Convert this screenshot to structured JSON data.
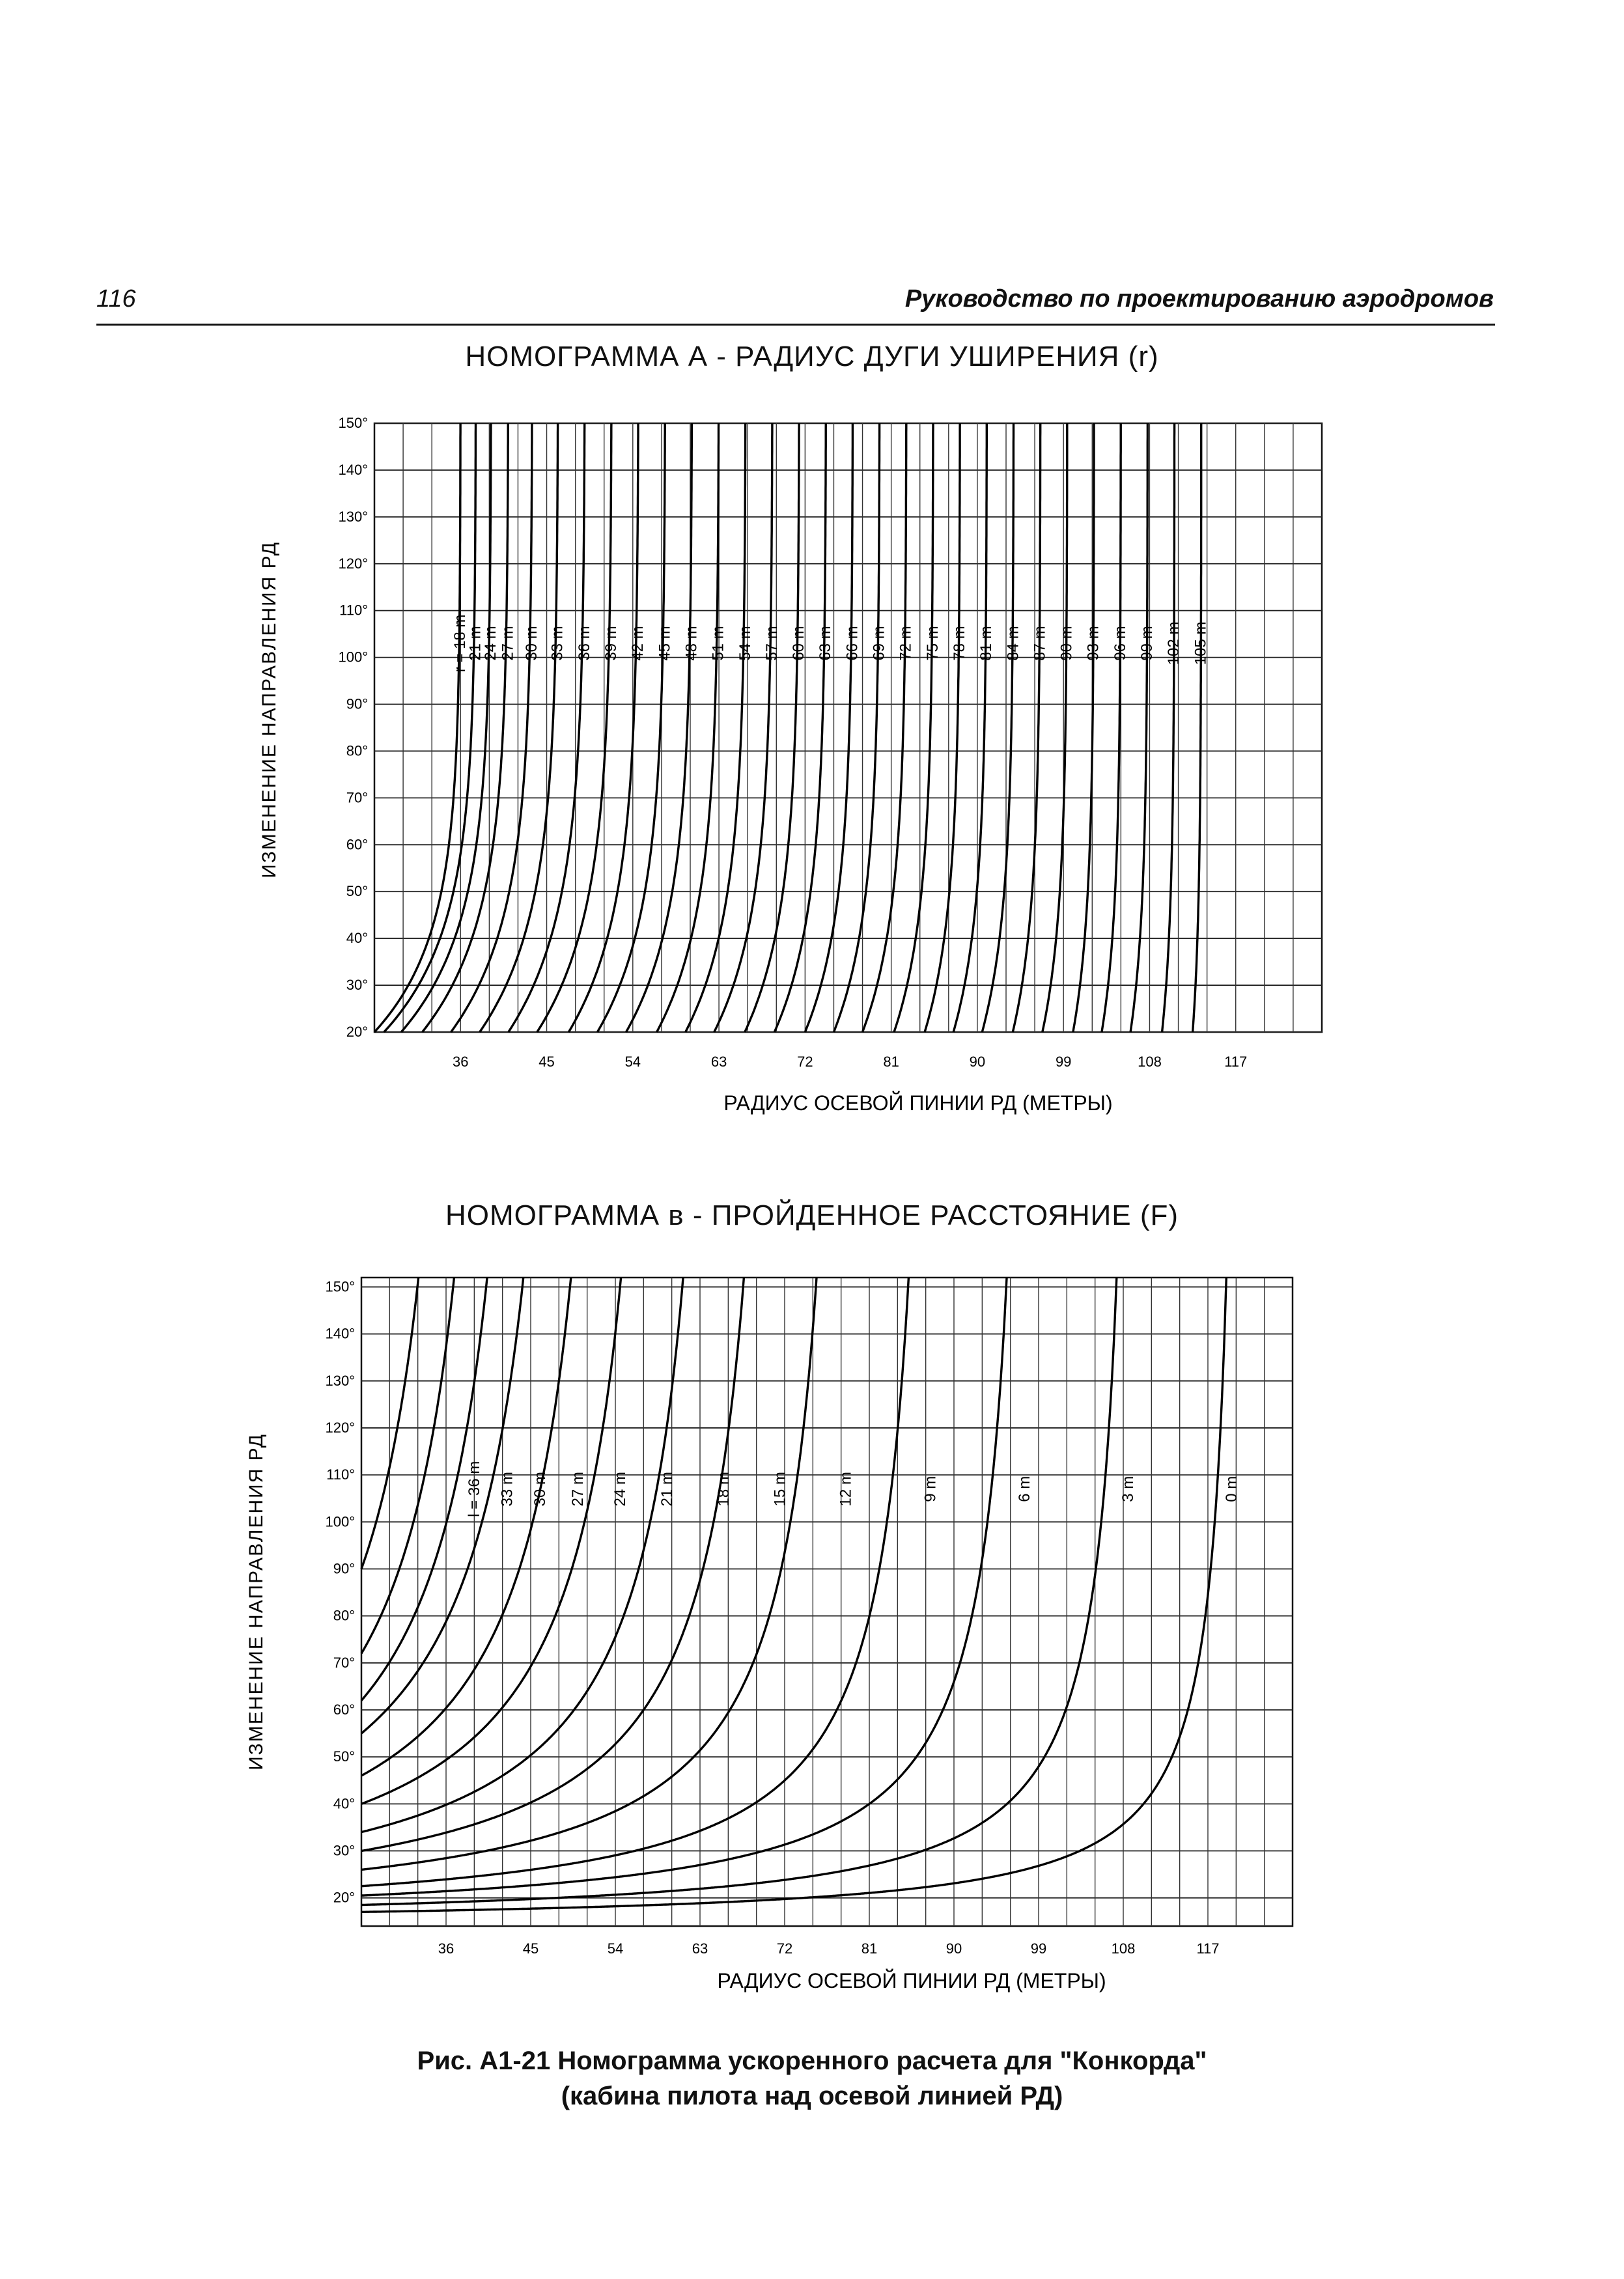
{
  "header": {
    "page_number": "116",
    "running_title": "Руководство по проектированию аэродромов"
  },
  "charts": [
    {
      "title": "НОМОГРАММА А - РАДИУС ДУГИ УШИРЕНИЯ (r)",
      "ylabel": "ИЗМЕНЕНИЕ НАПРАВЛЕНИЯ РД",
      "xlabel": "РАДИУС ОСЕВОЙ ПИНИИ РД (МЕТРЫ)",
      "yticks": [
        "20°",
        "30°",
        "40°",
        "50°",
        "60°",
        "70°",
        "80°",
        "90°",
        "100°",
        "110°",
        "120°",
        "130°",
        "140°",
        "150°"
      ],
      "xticks": [
        "36",
        "45",
        "54",
        "63",
        "72",
        "81",
        "90",
        "99",
        "108",
        "117"
      ]
    },
    {
      "title": "НОМОГРАММА в - ПРОЙДЕННОЕ РАССТОЯНИЕ (F)",
      "ylabel": "ИЗМЕНЕНИЕ НАПРАВЛЕНИЯ РД",
      "xlabel": "РАДИУС ОСЕВОЙ ПИНИИ РД (МЕТРЫ)",
      "yticks": [
        "20°",
        "30°",
        "40°",
        "50°",
        "60°",
        "70°",
        "80°",
        "90°",
        "100°",
        "110°",
        "120°",
        "130°",
        "140°",
        "150°"
      ],
      "xticks": [
        "36",
        "45",
        "54",
        "63",
        "72",
        "81",
        "90",
        "99",
        "108",
        "117"
      ]
    }
  ],
  "caption": {
    "line1": "Рис. A1-21  Номограмма ускоренного расчета для \"Конкорда\"",
    "line2": "(кабина пилота над осевой линией РД)"
  },
  "chart_data": [
    {
      "type": "line",
      "title": "НОМОГРАММА А - РАДИУС ДУГИ УШИРЕНИЯ (r)",
      "xlabel": "РАДИУС ОСЕВОЙ ПИНИИ РД (МЕТРЫ)",
      "ylabel": "ИЗМЕНЕНИЕ НАПРАВЛЕНИЯ РД",
      "xlim": [
        27,
        126
      ],
      "ylim": [
        20,
        150
      ],
      "x_tick_values": [
        36,
        45,
        54,
        63,
        72,
        81,
        90,
        99,
        108,
        117
      ],
      "y_tick_values": [
        20,
        30,
        40,
        50,
        60,
        70,
        80,
        90,
        100,
        110,
        120,
        130,
        140,
        150
      ],
      "grid": true,
      "series_note_values": "each curve: x_at_20deg (bottom), x_asymptote (top), curvature k",
      "series": [
        {
          "name": "r = 18 m",
          "x_at_20deg": 27.0,
          "x_asymptote": 36.0,
          "k": 0.05
        },
        {
          "name": "21 m",
          "x_at_20deg": 28.0,
          "x_asymptote": 37.6,
          "k": 0.047
        },
        {
          "name": "24 m",
          "x_at_20deg": 29.8,
          "x_asymptote": 39.2,
          "k": 0.045
        },
        {
          "name": "27 m",
          "x_at_20deg": 32.0,
          "x_asymptote": 41.0,
          "k": 0.043
        },
        {
          "name": "30 m",
          "x_at_20deg": 35.0,
          "x_asymptote": 43.5,
          "k": 0.042
        },
        {
          "name": "33 m",
          "x_at_20deg": 38.0,
          "x_asymptote": 46.2,
          "k": 0.041
        },
        {
          "name": "36 m",
          "x_at_20deg": 41.0,
          "x_asymptote": 49.0,
          "k": 0.04
        },
        {
          "name": "39 m",
          "x_at_20deg": 44.0,
          "x_asymptote": 51.8,
          "k": 0.04
        },
        {
          "name": "42 m",
          "x_at_20deg": 47.3,
          "x_asymptote": 54.6,
          "k": 0.04
        },
        {
          "name": "45 m",
          "x_at_20deg": 50.3,
          "x_asymptote": 57.4,
          "k": 0.04
        },
        {
          "name": "48 m",
          "x_at_20deg": 53.3,
          "x_asymptote": 60.2,
          "k": 0.04
        },
        {
          "name": "51 m",
          "x_at_20deg": 56.5,
          "x_asymptote": 63.0,
          "k": 0.04
        },
        {
          "name": "54 m",
          "x_at_20deg": 59.5,
          "x_asymptote": 65.8,
          "k": 0.04
        },
        {
          "name": "57 m",
          "x_at_20deg": 62.5,
          "x_asymptote": 68.6,
          "k": 0.04
        },
        {
          "name": "60 m",
          "x_at_20deg": 65.7,
          "x_asymptote": 71.4,
          "k": 0.04
        },
        {
          "name": "63 m",
          "x_at_20deg": 68.8,
          "x_asymptote": 74.2,
          "k": 0.04
        },
        {
          "name": "66 m",
          "x_at_20deg": 72.0,
          "x_asymptote": 77.0,
          "k": 0.04
        },
        {
          "name": "69 m",
          "x_at_20deg": 75.0,
          "x_asymptote": 79.8,
          "k": 0.04
        },
        {
          "name": "72 m",
          "x_at_20deg": 78.0,
          "x_asymptote": 82.6,
          "k": 0.04
        },
        {
          "name": "75 m",
          "x_at_20deg": 81.3,
          "x_asymptote": 85.4,
          "k": 0.04
        },
        {
          "name": "78 m",
          "x_at_20deg": 84.5,
          "x_asymptote": 88.2,
          "k": 0.04
        },
        {
          "name": "81 m",
          "x_at_20deg": 87.5,
          "x_asymptote": 91.0,
          "k": 0.04
        },
        {
          "name": "84 m",
          "x_at_20deg": 90.5,
          "x_asymptote": 93.8,
          "k": 0.04
        },
        {
          "name": "87 m",
          "x_at_20deg": 93.7,
          "x_asymptote": 96.6,
          "k": 0.04
        },
        {
          "name": "90 m",
          "x_at_20deg": 96.8,
          "x_asymptote": 99.4,
          "k": 0.04
        },
        {
          "name": "93 m",
          "x_at_20deg": 100.0,
          "x_asymptote": 102.2,
          "k": 0.04
        },
        {
          "name": "96 m",
          "x_at_20deg": 103.0,
          "x_asymptote": 105.0,
          "k": 0.04
        },
        {
          "name": "99 m",
          "x_at_20deg": 106.0,
          "x_asymptote": 107.8,
          "k": 0.04
        },
        {
          "name": "102 m",
          "x_at_20deg": 109.3,
          "x_asymptote": 110.6,
          "k": 0.04
        },
        {
          "name": "105 m",
          "x_at_20deg": 112.5,
          "x_asymptote": 113.4,
          "k": 0.04
        }
      ]
    },
    {
      "type": "line",
      "title": "НОМОГРАММА в - ПРОЙДЕННОЕ РАССТОЯНИЕ (F)",
      "xlabel": "РАДИУС ОСЕВОЙ ПИНИИ РД (МЕТРЫ)",
      "ylabel": "ИЗМЕНЕНИЕ НАПРАВЛЕНИЯ РД",
      "xlim": [
        27,
        126
      ],
      "ylim": [
        14,
        152
      ],
      "x_tick_values": [
        36,
        45,
        54,
        63,
        72,
        81,
        90,
        99,
        108,
        117
      ],
      "y_tick_values": [
        20,
        30,
        40,
        50,
        60,
        70,
        80,
        90,
        100,
        110,
        120,
        130,
        140,
        150
      ],
      "grid": true,
      "series_note_values": "each curve: angle at x=27 (left edge), x_asymptote (top), curvature k",
      "series": [
        {
          "name": "l = 36 m",
          "y_at_left": 90,
          "x_asymptote": 40.5,
          "k": 0.18
        },
        {
          "name": "33 m",
          "y_at_left": 72,
          "x_asymptote": 44.0,
          "k": 0.15
        },
        {
          "name": "30 m",
          "y_at_left": 62,
          "x_asymptote": 47.5,
          "k": 0.13
        },
        {
          "name": "27 m",
          "y_at_left": 55,
          "x_asymptote": 51.5,
          "k": 0.11
        },
        {
          "name": "24 m",
          "y_at_left": 46,
          "x_asymptote": 56.0,
          "k": 0.1
        },
        {
          "name": "21 m",
          "y_at_left": 40,
          "x_asymptote": 61.0,
          "k": 0.09
        },
        {
          "name": "18 m",
          "y_at_left": 34,
          "x_asymptote": 67.0,
          "k": 0.08
        },
        {
          "name": "15 m",
          "y_at_left": 30,
          "x_asymptote": 73.0,
          "k": 0.07
        },
        {
          "name": "12 m",
          "y_at_left": 26,
          "x_asymptote": 80.0,
          "k": 0.06
        },
        {
          "name": "9 m",
          "y_at_left": 22.5,
          "x_asymptote": 89.0,
          "k": 0.055
        },
        {
          "name": "6 m",
          "y_at_left": 20.5,
          "x_asymptote": 99.0,
          "k": 0.05
        },
        {
          "name": "3 m",
          "y_at_left": 18.5,
          "x_asymptote": 110.0,
          "k": 0.045
        },
        {
          "name": "0 m",
          "y_at_left": 17,
          "x_asymptote": 121.0,
          "k": 0.04
        }
      ]
    }
  ]
}
